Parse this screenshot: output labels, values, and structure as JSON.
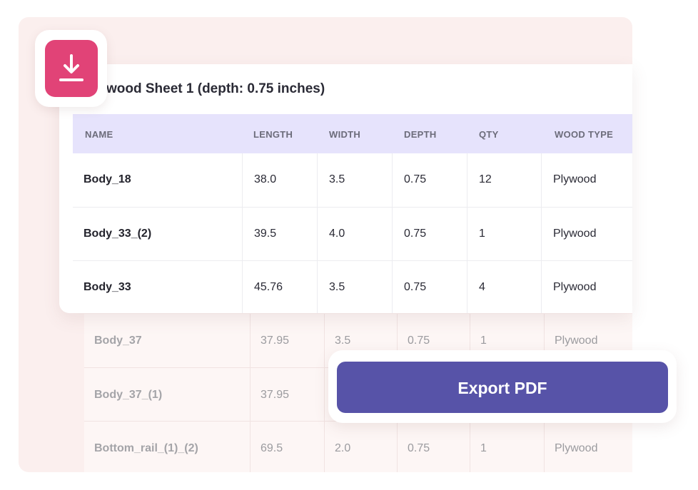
{
  "sheet_title": "wood Sheet 1 (depth: 0.75 inches)",
  "columns": [
    "NAME",
    "LENGTH",
    "WIDTH",
    "DEPTH",
    "QTY",
    "WOOD TYPE"
  ],
  "rows": [
    [
      "Body_18",
      "38.0",
      "3.5",
      "0.75",
      "12",
      "Plywood"
    ],
    [
      "Body_33_(2)",
      "39.5",
      "4.0",
      "0.75",
      "1",
      "Plywood"
    ],
    [
      "Body_33",
      "45.76",
      "3.5",
      "0.75",
      "4",
      "Plywood"
    ]
  ],
  "background_rows": [
    [
      "Body_37",
      "37.95",
      "3.5",
      "0.75",
      "1",
      "Plywood"
    ],
    [
      "Body_37_(1)",
      "37.95",
      "",
      "",
      "",
      ""
    ],
    [
      "Bottom_rail_(1)_(2)",
      "69.5",
      "2.0",
      "0.75",
      "1",
      "Plywood"
    ]
  ],
  "export_label": "Export PDF",
  "download_icon": "download-icon",
  "colors": {
    "accent": "#5753a8",
    "badge": "#e14377",
    "header_bg": "#e6e3fc",
    "backdrop": "#fbefee"
  }
}
